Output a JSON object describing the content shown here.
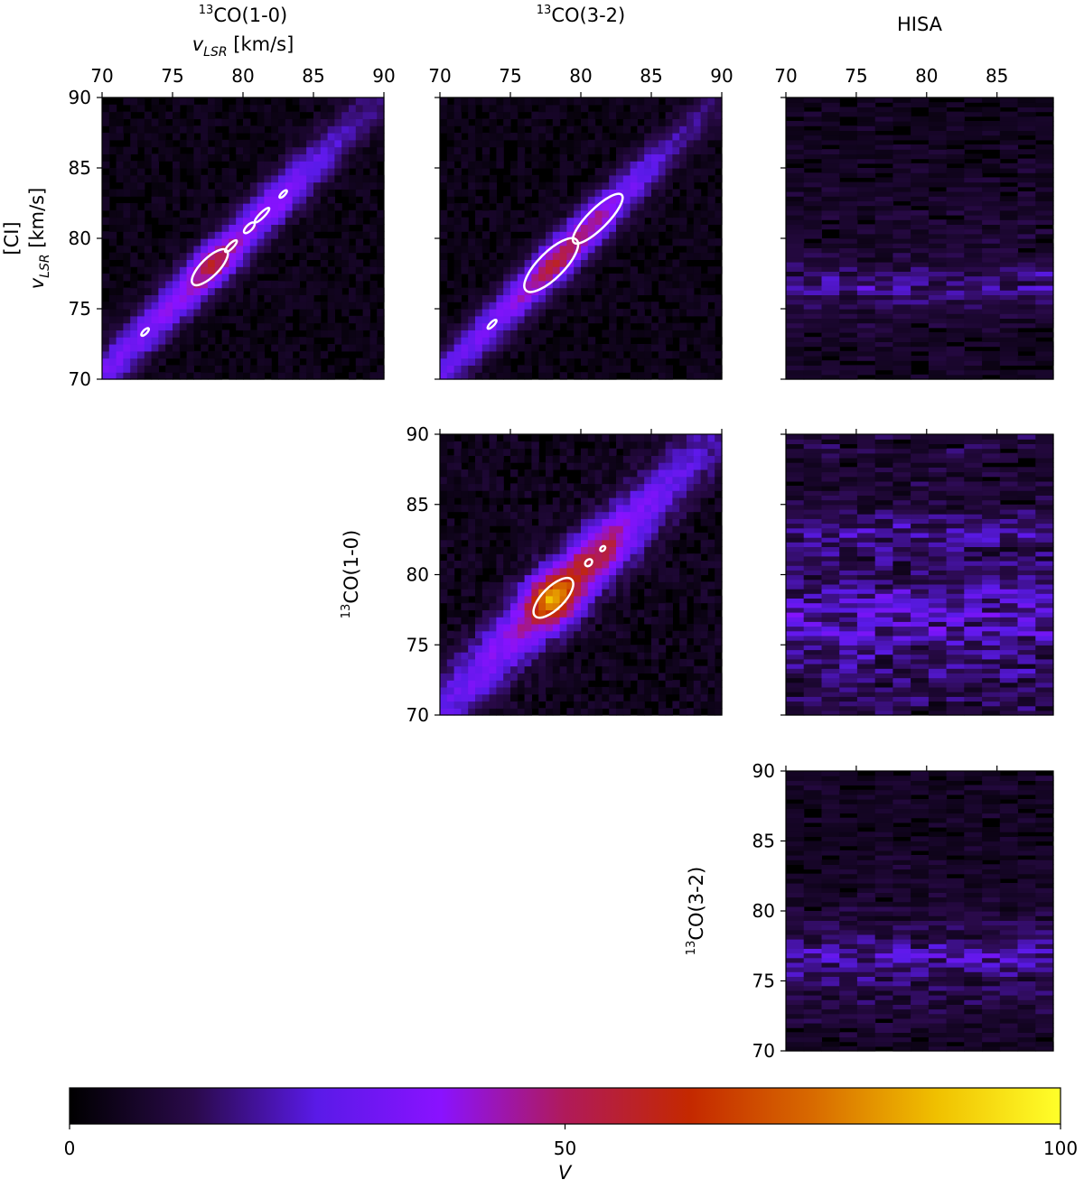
{
  "colormap": {
    "name": "gnuplot2",
    "stops": [
      "#000000",
      "#2a0a4a",
      "#5a1ae8",
      "#8a12ff",
      "#b01a5a",
      "#c42800",
      "#d86a00",
      "#f0c000",
      "#ffff2a"
    ]
  },
  "contour_color": "#ffffff",
  "chart_data": [
    {
      "type": "heatmap",
      "panel": "CI vs 13CO(1-0)",
      "title_superscript": "13",
      "title": "CO(1-0)",
      "xlabel": "v_LSR [km/s]",
      "ylabel_top": "[CI]",
      "ylabel": "v_LSR [km/s]",
      "xlim": [
        70,
        90
      ],
      "ylim": [
        70,
        90
      ],
      "xticks": [
        "70",
        "75",
        "80",
        "85",
        "90"
      ],
      "yticks": [
        "70",
        "75",
        "80",
        "85",
        "90"
      ],
      "structure": "diagonal",
      "ridge": [
        {
          "v": 72,
          "V": 28
        },
        {
          "v": 76,
          "V": 36
        },
        {
          "v": 78,
          "V": 52
        },
        {
          "v": 80.5,
          "V": 34
        },
        {
          "v": 82.5,
          "V": 36
        },
        {
          "v": 85,
          "V": 24
        },
        {
          "v": 89,
          "V": 14
        }
      ],
      "ridge_offset": -0.3,
      "ridge_width": 1.4,
      "noise_level": 7,
      "contour_regions": [
        {
          "v_center": 73.2,
          "length": 0.5,
          "width": 0.2
        },
        {
          "v_center": 77.8,
          "length": 2.4,
          "width": 0.9
        },
        {
          "v_center": 79.3,
          "length": 0.8,
          "width": 0.25
        },
        {
          "v_center": 80.6,
          "length": 0.7,
          "width": 0.3
        },
        {
          "v_center": 81.5,
          "length": 1.0,
          "width": 0.25
        },
        {
          "v_center": 83.0,
          "length": 0.5,
          "width": 0.15
        }
      ]
    },
    {
      "type": "heatmap",
      "panel": "CI vs 13CO(3-2)",
      "title_superscript": "13",
      "title": "CO(3-2)",
      "xlim": [
        70,
        90
      ],
      "ylim": [
        70,
        90
      ],
      "xticks": [
        "70",
        "75",
        "80",
        "85",
        "90"
      ],
      "structure": "diagonal",
      "ridge": [
        {
          "v": 71,
          "V": 24
        },
        {
          "v": 74,
          "V": 30
        },
        {
          "v": 76.5,
          "V": 40
        },
        {
          "v": 78,
          "V": 52
        },
        {
          "v": 80,
          "V": 46
        },
        {
          "v": 81.5,
          "V": 42
        },
        {
          "v": 83,
          "V": 30
        },
        {
          "v": 87,
          "V": 16
        },
        {
          "v": 90,
          "V": 10
        }
      ],
      "ridge_offset": -0.2,
      "ridge_width": 1.3,
      "noise_level": 7,
      "contour_regions": [
        {
          "v_center": 73.8,
          "length": 0.6,
          "width": 0.2
        },
        {
          "v_center": 78.0,
          "length": 3.6,
          "width": 1.3
        },
        {
          "v_center": 81.3,
          "length": 3.4,
          "width": 1.0
        }
      ]
    },
    {
      "type": "heatmap",
      "panel": "CI vs HISA",
      "title": "HISA",
      "xlim": [
        70,
        89
      ],
      "ylim": [
        70,
        90
      ],
      "xticks": [
        "70",
        "75",
        "80",
        "85"
      ],
      "structure": "bands",
      "band_profile": [
        {
          "v": 70,
          "V": 6
        },
        {
          "v": 73,
          "V": 7
        },
        {
          "v": 75,
          "V": 10
        },
        {
          "v": 76.5,
          "V": 20
        },
        {
          "v": 77.5,
          "V": 16
        },
        {
          "v": 79,
          "V": 9
        },
        {
          "v": 82,
          "V": 8
        },
        {
          "v": 86,
          "V": 6
        },
        {
          "v": 90,
          "V": 5
        }
      ],
      "noise_level": 10
    },
    {
      "type": "heatmap",
      "panel": "13CO(1-0) vs 13CO(3-2)",
      "ylabel_superscript": "13",
      "ylabel": "CO(1-0)",
      "xlim": [
        70,
        90
      ],
      "ylim": [
        70,
        90
      ],
      "yticks": [
        "70",
        "75",
        "80",
        "85",
        "90"
      ],
      "structure": "diagonal",
      "ridge": [
        {
          "v": 71,
          "V": 24
        },
        {
          "v": 74,
          "V": 30
        },
        {
          "v": 76.5,
          "V": 42
        },
        {
          "v": 78,
          "V": 80
        },
        {
          "v": 80,
          "V": 52
        },
        {
          "v": 82,
          "V": 48
        },
        {
          "v": 84,
          "V": 30
        },
        {
          "v": 87,
          "V": 22
        },
        {
          "v": 90,
          "V": 14
        }
      ],
      "ridge_offset": -0.3,
      "ridge_width": 1.9,
      "noise_level": 9,
      "contour_regions": [
        {
          "v_center": 78.2,
          "length": 2.6,
          "width": 1.1
        },
        {
          "v_center": 80.7,
          "length": 0.4,
          "width": 0.3
        },
        {
          "v_center": 81.7,
          "length": 0.3,
          "width": 0.2
        }
      ]
    },
    {
      "type": "heatmap",
      "panel": "13CO(1-0) vs HISA",
      "xlim": [
        70,
        89
      ],
      "ylim": [
        70,
        90
      ],
      "structure": "bands",
      "band_profile": [
        {
          "v": 70,
          "V": 12
        },
        {
          "v": 72,
          "V": 14
        },
        {
          "v": 74,
          "V": 18
        },
        {
          "v": 76,
          "V": 24
        },
        {
          "v": 78,
          "V": 26
        },
        {
          "v": 80,
          "V": 14
        },
        {
          "v": 82,
          "V": 15
        },
        {
          "v": 83,
          "V": 20
        },
        {
          "v": 85,
          "V": 10
        },
        {
          "v": 88,
          "V": 9
        },
        {
          "v": 90,
          "V": 12
        }
      ],
      "noise_level": 12
    },
    {
      "type": "heatmap",
      "panel": "13CO(3-2) vs HISA",
      "ylabel_superscript": "13",
      "ylabel": "CO(3-2)",
      "xlim": [
        70,
        89
      ],
      "ylim": [
        70,
        90
      ],
      "yticks": [
        "70",
        "75",
        "80",
        "85",
        "90"
      ],
      "structure": "bands",
      "band_profile": [
        {
          "v": 70,
          "V": 6
        },
        {
          "v": 72,
          "V": 9
        },
        {
          "v": 74,
          "V": 12
        },
        {
          "v": 75.5,
          "V": 16
        },
        {
          "v": 77,
          "V": 24
        },
        {
          "v": 78,
          "V": 14
        },
        {
          "v": 80,
          "V": 9
        },
        {
          "v": 83,
          "V": 7
        },
        {
          "v": 86,
          "V": 6
        },
        {
          "v": 90,
          "V": 7
        }
      ],
      "noise_level": 9
    },
    {
      "type": "colorbar",
      "label": "V",
      "range": [
        0,
        100
      ],
      "ticks": [
        "0",
        "50",
        "100"
      ]
    }
  ]
}
